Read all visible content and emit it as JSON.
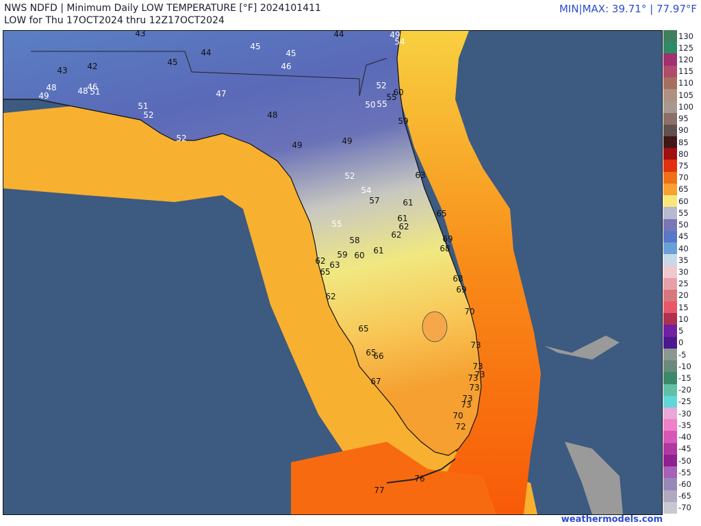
{
  "header": {
    "title_line1": "NWS NDFD | Minimum Daily LOW TEMPERATURE [°F]  2024101411",
    "title_line2": "LOW for Thu 17OCT2024 thru 12Z17OCT2024",
    "minmax": "MIN|MAX:  39.71°  | 77.97°F"
  },
  "credit": "weathermodels.com",
  "legend": {
    "ticks": [
      "130",
      "125",
      "120",
      "115",
      "110",
      "105",
      "100",
      "95",
      "90",
      "85",
      "80",
      "75",
      "70",
      "65",
      "60",
      "55",
      "50",
      "45",
      "40",
      "35",
      "30",
      "25",
      "20",
      "15",
      "10",
      "5",
      "0",
      "-5",
      "-10",
      "-15",
      "-20",
      "-25",
      "-30",
      "-35",
      "-40",
      "-45",
      "-50",
      "-55",
      "-60",
      "-65",
      "-70"
    ],
    "colors": [
      "#3f7f5f",
      "#2e8b6a",
      "#a03070",
      "#b04b6a",
      "#a67060",
      "#b09080",
      "#a89890",
      "#8a7068",
      "#605050",
      "#401818",
      "#a01010",
      "#e03010",
      "#f07018",
      "#f8a030",
      "#f8e878",
      "#b8b8d0",
      "#7878b8",
      "#5a78c8",
      "#6aa0d8",
      "#c8d8e8",
      "#f0c8d0",
      "#e8a0a8",
      "#d8787c",
      "#e85868",
      "#b03050",
      "#7020a0",
      "#4a1890",
      "#8a9890",
      "#6a8a80",
      "#3a8a6a",
      "#60c0a8",
      "#60d8d8",
      "#e8a8d8",
      "#f080c8",
      "#d858b8",
      "#b038a0",
      "#902090",
      "#a860b8",
      "#9888b8",
      "#b0a8c0",
      "#c8c8d0"
    ]
  },
  "map_labels": [
    {
      "t": "43",
      "c": "dark"
    },
    {
      "t": "44",
      "c": "dark"
    },
    {
      "t": "49",
      "c": "light"
    },
    {
      "t": "54",
      "c": "light"
    },
    {
      "t": "44",
      "c": "dark"
    },
    {
      "t": "45",
      "c": "light"
    },
    {
      "t": "45",
      "c": "light"
    },
    {
      "t": "43",
      "c": "dark"
    },
    {
      "t": "42",
      "c": "dark"
    },
    {
      "t": "45",
      "c": "dark"
    },
    {
      "t": "46",
      "c": "light"
    },
    {
      "t": "48",
      "c": "light"
    },
    {
      "t": "49",
      "c": "light"
    },
    {
      "t": "48",
      "c": "light"
    },
    {
      "t": "46",
      "c": "light"
    },
    {
      "t": "51",
      "c": "light"
    },
    {
      "t": "47",
      "c": "light"
    },
    {
      "t": "52",
      "c": "light"
    },
    {
      "t": "60",
      "c": "dark"
    },
    {
      "t": "55",
      "c": "dark"
    },
    {
      "t": "50",
      "c": "light"
    },
    {
      "t": "55",
      "c": "light"
    },
    {
      "t": "51",
      "c": "light"
    },
    {
      "t": "52",
      "c": "light"
    },
    {
      "t": "48",
      "c": "dark"
    },
    {
      "t": "59",
      "c": "dark"
    },
    {
      "t": "52",
      "c": "light"
    },
    {
      "t": "49",
      "c": "dark"
    },
    {
      "t": "49",
      "c": "dark"
    },
    {
      "t": "52",
      "c": "light"
    },
    {
      "t": "63",
      "c": "dark"
    },
    {
      "t": "54",
      "c": "light"
    },
    {
      "t": "57",
      "c": "dark"
    },
    {
      "t": "61",
      "c": "dark"
    },
    {
      "t": "65",
      "c": "dark"
    },
    {
      "t": "61",
      "c": "dark"
    },
    {
      "t": "62",
      "c": "dark"
    },
    {
      "t": "55",
      "c": "light"
    },
    {
      "t": "62",
      "c": "dark"
    },
    {
      "t": "58",
      "c": "dark"
    },
    {
      "t": "69",
      "c": "dark"
    },
    {
      "t": "68",
      "c": "dark"
    },
    {
      "t": "61",
      "c": "dark"
    },
    {
      "t": "59",
      "c": "dark"
    },
    {
      "t": "60",
      "c": "dark"
    },
    {
      "t": "62",
      "c": "dark"
    },
    {
      "t": "63",
      "c": "dark"
    },
    {
      "t": "65",
      "c": "dark"
    },
    {
      "t": "68",
      "c": "dark"
    },
    {
      "t": "69",
      "c": "dark"
    },
    {
      "t": "62",
      "c": "dark"
    },
    {
      "t": "70",
      "c": "dark"
    },
    {
      "t": "65",
      "c": "dark"
    },
    {
      "t": "73",
      "c": "dark"
    },
    {
      "t": "65",
      "c": "dark"
    },
    {
      "t": "66",
      "c": "dark"
    },
    {
      "t": "73",
      "c": "dark"
    },
    {
      "t": "73",
      "c": "dark"
    },
    {
      "t": "73",
      "c": "dark"
    },
    {
      "t": "67",
      "c": "dark"
    },
    {
      "t": "73",
      "c": "dark"
    },
    {
      "t": "73",
      "c": "dark"
    },
    {
      "t": "73",
      "c": "dark"
    },
    {
      "t": "70",
      "c": "dark"
    },
    {
      "t": "72",
      "c": "dark"
    },
    {
      "t": "76",
      "c": "dark"
    },
    {
      "t": "77",
      "c": "dark"
    }
  ]
}
